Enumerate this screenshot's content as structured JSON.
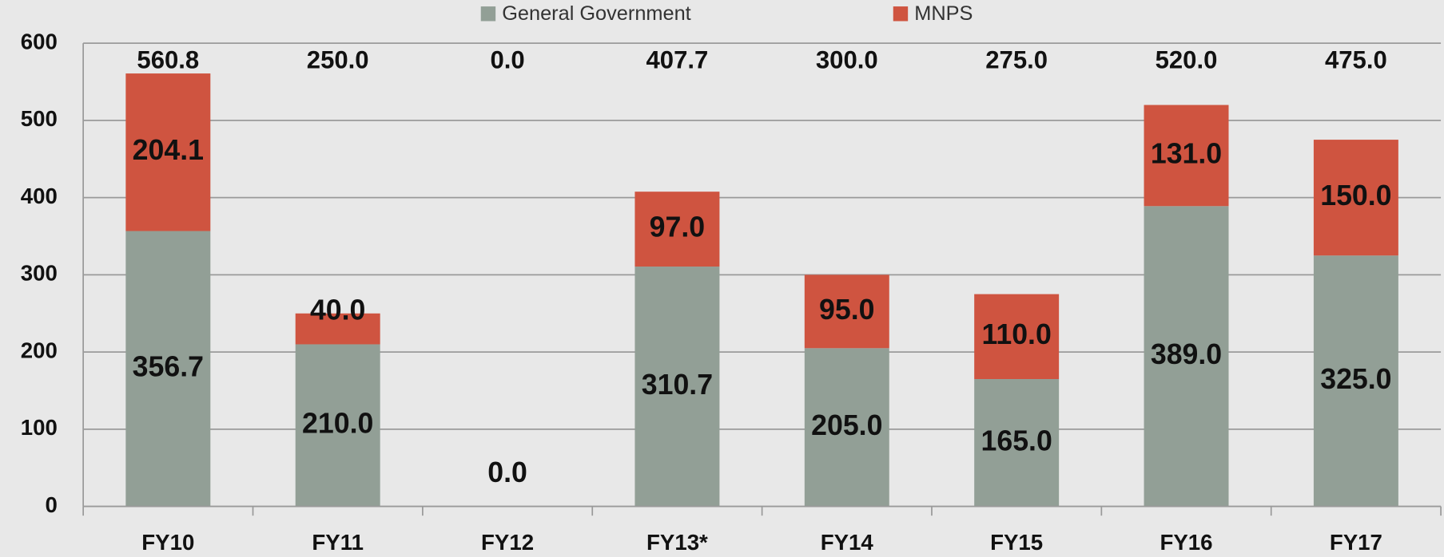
{
  "chart_data": {
    "type": "stacked_bar",
    "categories": [
      "FY10",
      "FY11",
      "FY12",
      "FY13*",
      "FY14",
      "FY15",
      "FY16",
      "FY17"
    ],
    "series": [
      {
        "name": "General Government",
        "color": "#929f96",
        "values": [
          356.7,
          210,
          0,
          310.7,
          205,
          165,
          389,
          325
        ],
        "value_labels": [
          "356.7",
          "210.0",
          "0.0",
          "310.7",
          "205.0",
          "165.0",
          "389.0",
          "325.0"
        ]
      },
      {
        "name": "MNPS",
        "color": "#cf5440",
        "values": [
          204.1,
          40,
          0,
          97,
          95,
          110,
          131,
          150
        ],
        "value_labels": [
          "204.1",
          "40.0",
          null,
          "97.0",
          "95.0",
          "110.0",
          "131.0",
          "150.0"
        ]
      }
    ],
    "totals": [
      560.8,
      250,
      0,
      407.7,
      300,
      275,
      520,
      475
    ],
    "total_labels": [
      "560.8",
      "250.0",
      "0.0",
      "407.7",
      "300.0",
      "275.0",
      "520.0",
      "475.0"
    ],
    "ylim": [
      0,
      600
    ],
    "yticks": [
      0,
      100,
      200,
      300,
      400,
      500,
      600
    ],
    "grid": true,
    "legend": "top"
  }
}
